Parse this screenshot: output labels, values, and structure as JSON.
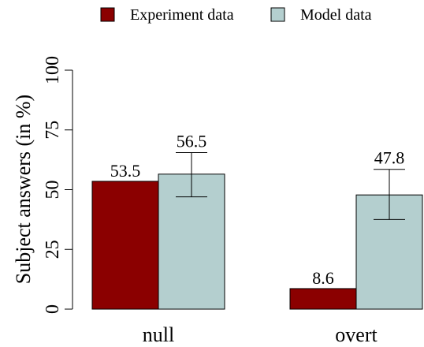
{
  "chart_data": {
    "type": "bar",
    "categories": [
      "null",
      "overt"
    ],
    "series": [
      {
        "name": "Experiment data",
        "color": "#8b0000",
        "values": [
          53.5,
          8.6
        ],
        "error": [
          null,
          null
        ]
      },
      {
        "name": "Model data",
        "color": "#b4cfcf",
        "values": [
          56.5,
          47.8
        ],
        "error": [
          [
            47.0,
            65.5
          ],
          [
            37.5,
            58.5
          ]
        ]
      }
    ],
    "value_labels": [
      [
        "53.5",
        "8.6"
      ],
      [
        "56.5",
        "47.8"
      ]
    ],
    "ylabel": "Subject answers (in %)",
    "xlabel": "",
    "ylim": [
      0,
      100
    ],
    "yticks": [
      0,
      25,
      50,
      75,
      100
    ],
    "ytick_labels": [
      "0",
      "25",
      "50",
      "75",
      "100"
    ],
    "legend_position": "top",
    "grid": false
  }
}
